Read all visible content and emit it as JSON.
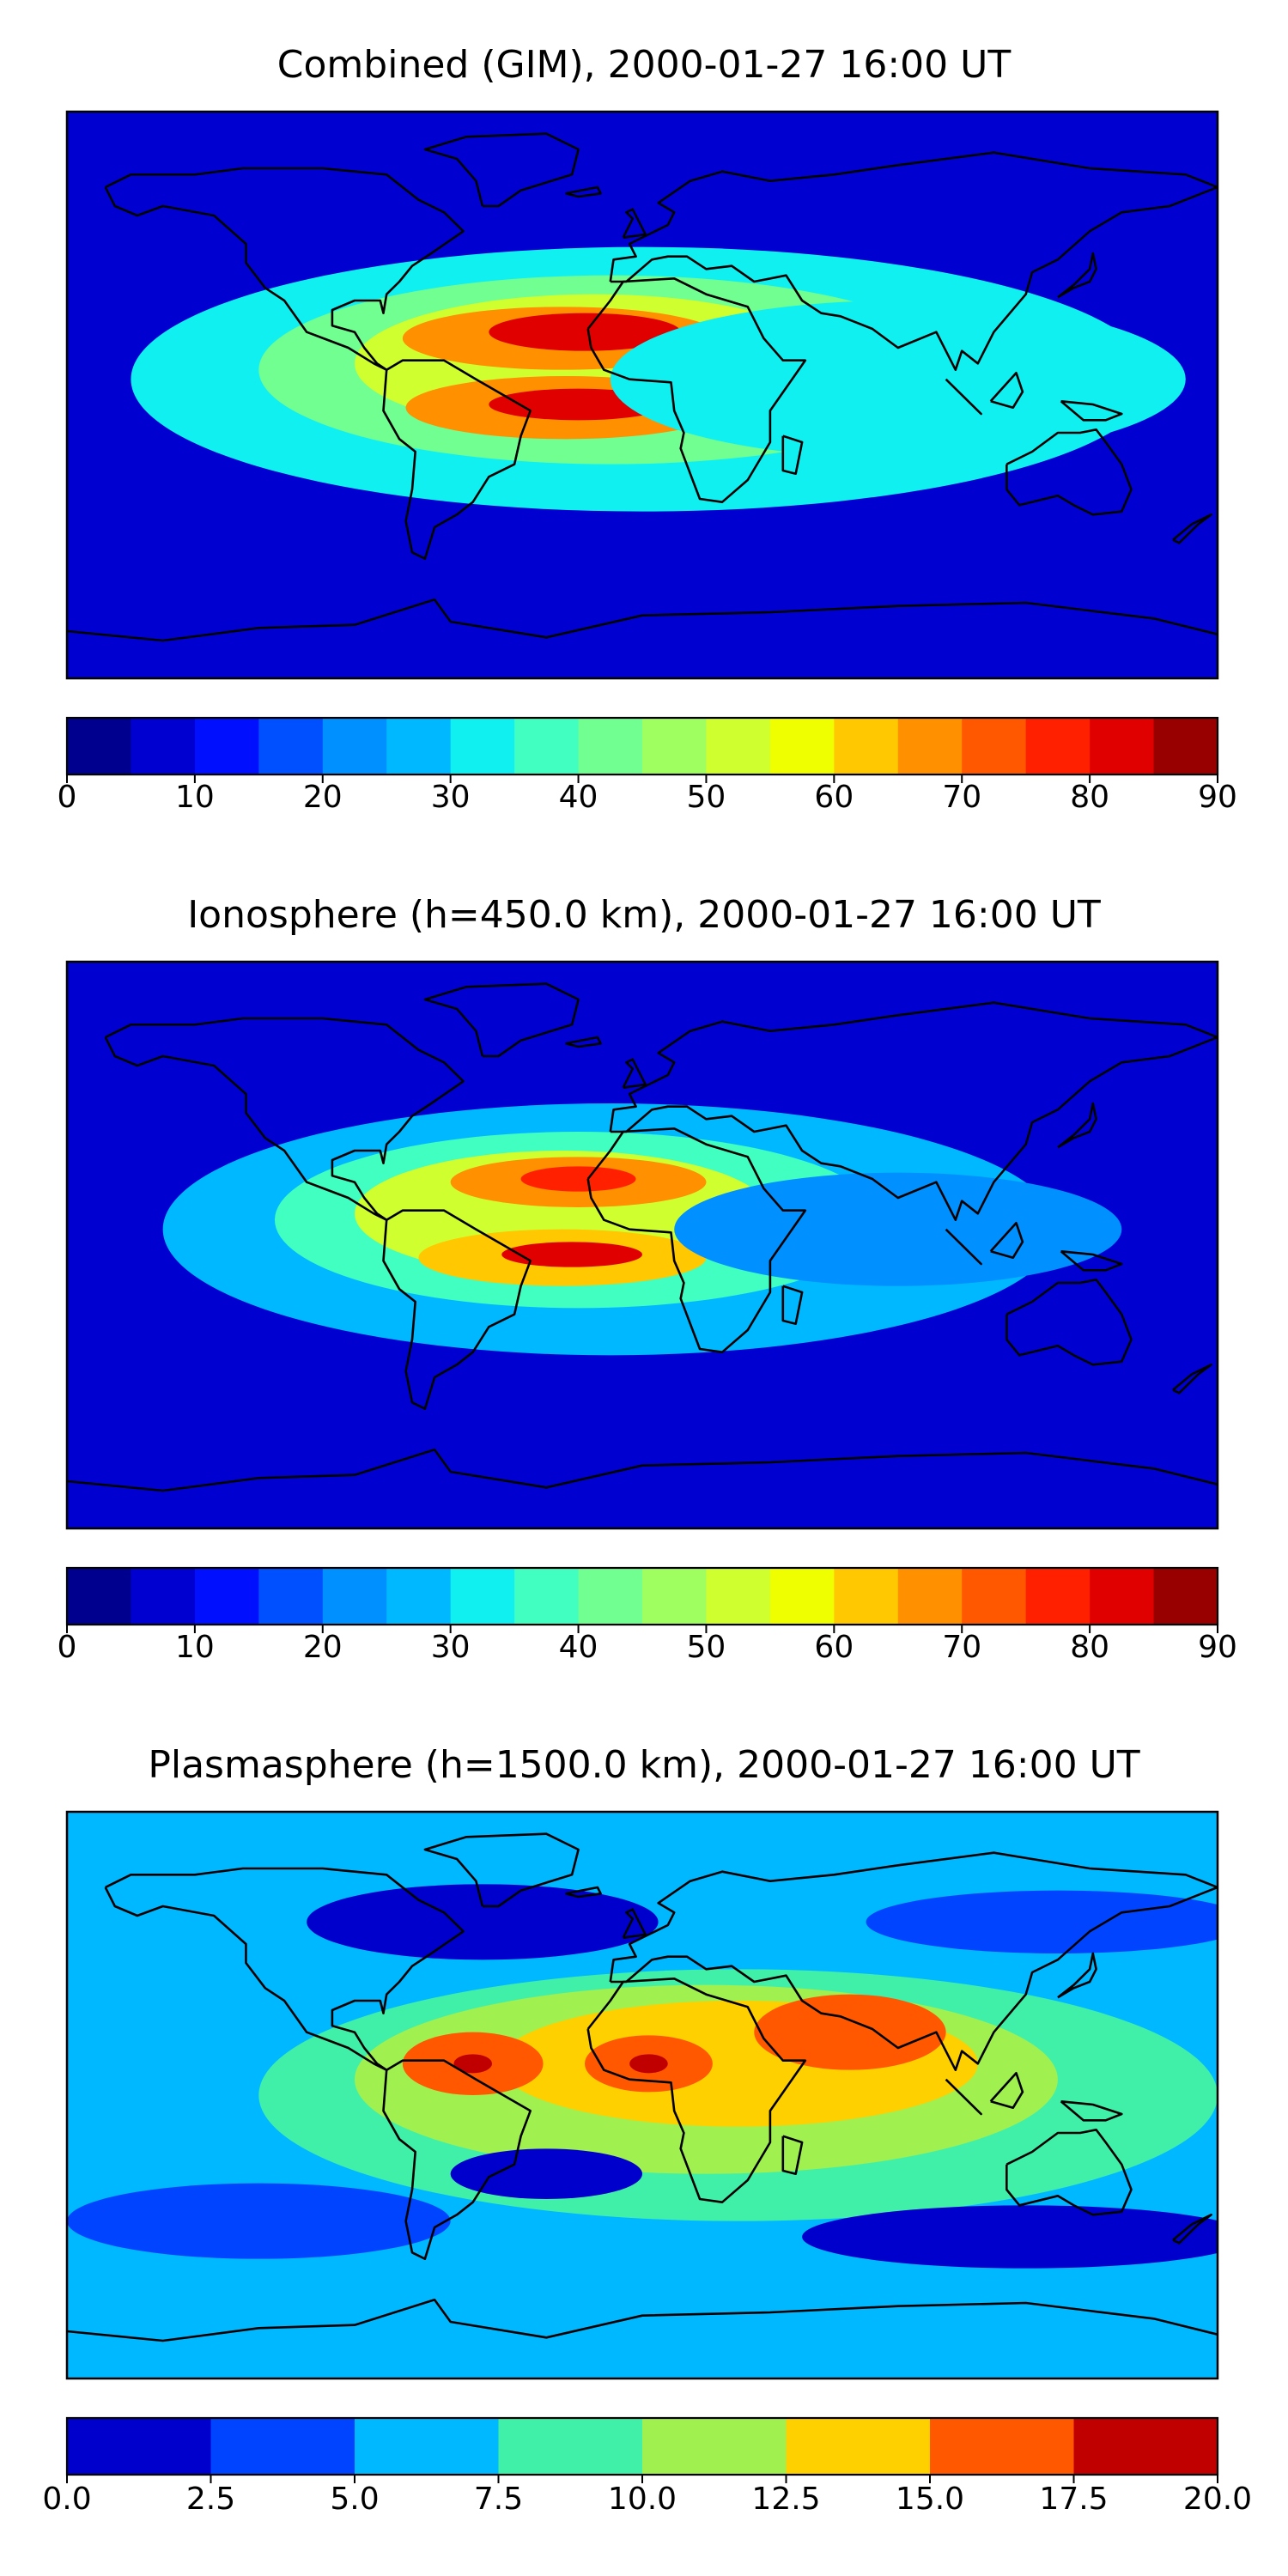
{
  "figure": {
    "type": "figure",
    "description_panels": 3
  },
  "chart_data": [
    {
      "type": "heatmap",
      "title": "Combined (GIM), 2000-01-27 16:00 UT",
      "xlabel": "",
      "ylabel": "",
      "xlim": [
        -180,
        180
      ],
      "ylim": [
        -90,
        90
      ],
      "colorbar": {
        "levels": [
          0,
          5,
          10,
          15,
          20,
          25,
          30,
          35,
          40,
          45,
          50,
          55,
          60,
          65,
          70,
          75,
          80,
          85,
          90
        ],
        "tick_values": [
          0,
          10,
          20,
          30,
          40,
          50,
          60,
          70,
          80,
          90
        ],
        "tick_labels": [
          "0",
          "10",
          "20",
          "30",
          "40",
          "50",
          "60",
          "70",
          "80",
          "90"
        ],
        "colors": [
          "#00008f",
          "#0000d0",
          "#0010ff",
          "#0050ff",
          "#0090ff",
          "#00b8ff",
          "#10f0f0",
          "#40ffc0",
          "#70ff90",
          "#a0ff60",
          "#d0ff30",
          "#f0ff00",
          "#ffc800",
          "#ff9000",
          "#ff5800",
          "#ff2000",
          "#e00000",
          "#980000"
        ]
      },
      "regions": [
        {
          "lon": 0,
          "lat": 5,
          "rx": 160,
          "ry": 42,
          "value": 33
        },
        {
          "lon": -10,
          "lat": 8,
          "rx": 110,
          "ry": 30,
          "value": 42
        },
        {
          "lon": -15,
          "lat": 10,
          "rx": 75,
          "ry": 22,
          "value": 52
        },
        {
          "lon": -25,
          "lat": 18,
          "rx": 50,
          "ry": 10,
          "value": 68
        },
        {
          "lon": -18,
          "lat": 20,
          "rx": 30,
          "ry": 6,
          "value": 82
        },
        {
          "lon": -24,
          "lat": -4,
          "rx": 50,
          "ry": 10,
          "value": 66
        },
        {
          "lon": -20,
          "lat": -3,
          "rx": 28,
          "ry": 5,
          "value": 82
        },
        {
          "lon": 80,
          "lat": 5,
          "rx": 90,
          "ry": 25,
          "value": 30
        }
      ]
    },
    {
      "type": "heatmap",
      "title": "Ionosphere  (h=450.0 km), 2000-01-27 16:00 UT",
      "xlabel": "",
      "ylabel": "",
      "xlim": [
        -180,
        180
      ],
      "ylim": [
        -90,
        90
      ],
      "colorbar": {
        "levels": [
          0,
          5,
          10,
          15,
          20,
          25,
          30,
          35,
          40,
          45,
          50,
          55,
          60,
          65,
          70,
          75,
          80,
          85,
          90
        ],
        "tick_values": [
          0,
          10,
          20,
          30,
          40,
          50,
          60,
          70,
          80,
          90
        ],
        "tick_labels": [
          "0",
          "10",
          "20",
          "30",
          "40",
          "50",
          "60",
          "70",
          "80",
          "90"
        ],
        "colors": [
          "#00008f",
          "#0000d0",
          "#0010ff",
          "#0050ff",
          "#0090ff",
          "#00b8ff",
          "#10f0f0",
          "#40ffc0",
          "#70ff90",
          "#a0ff60",
          "#d0ff30",
          "#f0ff00",
          "#ffc800",
          "#ff9000",
          "#ff5800",
          "#ff2000",
          "#e00000",
          "#980000"
        ]
      },
      "regions": [
        {
          "lon": -10,
          "lat": 5,
          "rx": 140,
          "ry": 40,
          "value": 28
        },
        {
          "lon": -20,
          "lat": 8,
          "rx": 95,
          "ry": 28,
          "value": 38
        },
        {
          "lon": -25,
          "lat": 10,
          "rx": 65,
          "ry": 20,
          "value": 50
        },
        {
          "lon": -20,
          "lat": 20,
          "rx": 40,
          "ry": 8,
          "value": 66
        },
        {
          "lon": -20,
          "lat": 21,
          "rx": 18,
          "ry": 4,
          "value": 78
        },
        {
          "lon": -25,
          "lat": -4,
          "rx": 45,
          "ry": 9,
          "value": 64
        },
        {
          "lon": -22,
          "lat": -3,
          "rx": 22,
          "ry": 4,
          "value": 80
        },
        {
          "lon": 80,
          "lat": 5,
          "rx": 70,
          "ry": 18,
          "value": 24
        }
      ]
    },
    {
      "type": "heatmap",
      "title": "Plasmasphere (h=1500.0 km), 2000-01-27 16:00 UT",
      "xlabel": "",
      "ylabel": "",
      "xlim": [
        -180,
        180
      ],
      "ylim": [
        -90,
        90
      ],
      "colorbar": {
        "levels": [
          0.0,
          2.5,
          5.0,
          7.5,
          10.0,
          12.5,
          15.0,
          17.5,
          20.0
        ],
        "tick_values": [
          0.0,
          2.5,
          5.0,
          7.5,
          10.0,
          12.5,
          15.0,
          17.5,
          20.0
        ],
        "tick_labels": [
          "0.0",
          "2.5",
          "5.0",
          "7.5",
          "10.0",
          "12.5",
          "15.0",
          "17.5",
          "20.0"
        ],
        "colors": [
          "#0000cc",
          "#0044ff",
          "#00b8ff",
          "#40f0a8",
          "#a0f050",
          "#ffd000",
          "#ff5800",
          "#c00000"
        ]
      },
      "regions": [
        {
          "lon": -50,
          "lat": 55,
          "rx": 55,
          "ry": 12,
          "value": 1.5
        },
        {
          "lon": 130,
          "lat": 55,
          "rx": 60,
          "ry": 10,
          "value": 3.5
        },
        {
          "lon": 30,
          "lat": 0,
          "rx": 150,
          "ry": 40,
          "value": 8.5
        },
        {
          "lon": 20,
          "lat": 5,
          "rx": 110,
          "ry": 30,
          "value": 11
        },
        {
          "lon": 30,
          "lat": 10,
          "rx": 75,
          "ry": 20,
          "value": 13.5
        },
        {
          "lon": -53,
          "lat": 10,
          "rx": 22,
          "ry": 10,
          "value": 16
        },
        {
          "lon": -53,
          "lat": 10,
          "rx": 6,
          "ry": 3,
          "value": 18.5
        },
        {
          "lon": 2,
          "lat": 10,
          "rx": 20,
          "ry": 9,
          "value": 16
        },
        {
          "lon": 2,
          "lat": 10,
          "rx": 6,
          "ry": 3,
          "value": 18.5
        },
        {
          "lon": 65,
          "lat": 20,
          "rx": 30,
          "ry": 12,
          "value": 16
        },
        {
          "lon": -30,
          "lat": -25,
          "rx": 30,
          "ry": 8,
          "value": 1.5
        },
        {
          "lon": 120,
          "lat": -45,
          "rx": 70,
          "ry": 10,
          "value": 1.5
        },
        {
          "lon": -120,
          "lat": -40,
          "rx": 60,
          "ry": 12,
          "value": 3.5
        }
      ]
    }
  ]
}
